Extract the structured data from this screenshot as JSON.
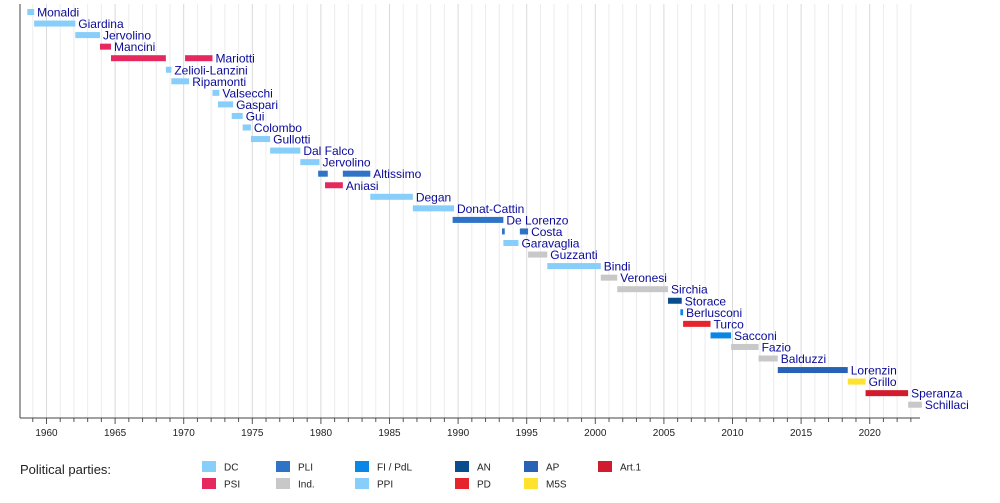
{
  "chart_data": {
    "type": "bar",
    "orientation": "horizontal-timeline",
    "xlim": [
      1958.0,
      2024.0
    ],
    "x_ticks": [
      1960,
      1965,
      1970,
      1975,
      1980,
      1985,
      1990,
      1995,
      2000,
      2005,
      2010,
      2015,
      2020
    ],
    "grid": true,
    "legend_title": "Political parties:",
    "parties": [
      {
        "key": "DC",
        "label": "DC",
        "color": "#87cefa"
      },
      {
        "key": "PSI",
        "label": "PSI",
        "color": "#e5295e"
      },
      {
        "key": "PLI",
        "label": "PLI",
        "color": "#2e73c6"
      },
      {
        "key": "Ind",
        "label": "Ind.",
        "color": "#c8c8c8"
      },
      {
        "key": "FI",
        "label": "FI / PdL",
        "color": "#0a87e6"
      },
      {
        "key": "PPI",
        "label": "PPI",
        "color": "#87cefa"
      },
      {
        "key": "AN",
        "label": "AN",
        "color": "#0a4d8f"
      },
      {
        "key": "PD",
        "label": "PD",
        "color": "#e5242c"
      },
      {
        "key": "AP",
        "label": "AP",
        "color": "#2762b4"
      },
      {
        "key": "M5S",
        "label": "M5S",
        "color": "#ffe22d"
      },
      {
        "key": "Art1",
        "label": "Art.1",
        "color": "#d01c2e"
      }
    ],
    "entries": [
      {
        "name": "Monaldi",
        "start": 1958.6,
        "end": 1959.1,
        "party": "DC"
      },
      {
        "name": "Giardina",
        "start": 1959.1,
        "end": 1962.1,
        "party": "DC"
      },
      {
        "name": "Jervolino",
        "start": 1962.1,
        "end": 1963.9,
        "party": "DC"
      },
      {
        "name": "Mancini",
        "start": 1963.9,
        "end": 1964.7,
        "party": "PSI"
      },
      {
        "name": "Mariotti",
        "start": 1964.7,
        "end": 1968.7,
        "party": "PSI",
        "start2": 1970.1,
        "end2": 1972.1
      },
      {
        "name": "Zelioli-Lanzini",
        "start": 1968.7,
        "end": 1969.1,
        "party": "DC"
      },
      {
        "name": "Ripamonti",
        "start": 1969.1,
        "end": 1970.4,
        "party": "DC"
      },
      {
        "name": "Valsecchi",
        "start": 1972.1,
        "end": 1972.6,
        "party": "DC"
      },
      {
        "name": "Gaspari",
        "start": 1972.5,
        "end": 1973.6,
        "party": "DC"
      },
      {
        "name": "Gui",
        "start": 1973.5,
        "end": 1974.3,
        "party": "DC"
      },
      {
        "name": "Colombo",
        "start": 1974.3,
        "end": 1974.9,
        "party": "DC"
      },
      {
        "name": "Gullotti",
        "start": 1974.9,
        "end": 1976.3,
        "party": "DC"
      },
      {
        "name": "Dal Falco",
        "start": 1976.3,
        "end": 1978.5,
        "party": "DC"
      },
      {
        "name": "Jervolino",
        "start": 1978.5,
        "end": 1979.9,
        "party": "DC"
      },
      {
        "name": "Altissimo",
        "start": 1979.8,
        "end": 1980.5,
        "party": "PLI",
        "start2": 1981.6,
        "end2": 1983.6
      },
      {
        "name": "Aniasi",
        "start": 1980.3,
        "end": 1981.6,
        "party": "PSI"
      },
      {
        "name": "Degan",
        "start": 1983.6,
        "end": 1986.7,
        "party": "DC"
      },
      {
        "name": "Donat-Cattin",
        "start": 1986.7,
        "end": 1989.7,
        "party": "DC"
      },
      {
        "name": "De Lorenzo",
        "start": 1989.6,
        "end": 1993.3,
        "party": "PLI"
      },
      {
        "name": "Costa",
        "start": 1993.2,
        "end": 1993.4,
        "party": "PLI",
        "start2": 1994.5,
        "end2": 1995.1
      },
      {
        "name": "Garavaglia",
        "start": 1993.3,
        "end": 1994.4,
        "party": "PPI"
      },
      {
        "name": "Guzzanti",
        "start": 1995.1,
        "end": 1996.5,
        "party": "Ind"
      },
      {
        "name": "Bindi",
        "start": 1996.5,
        "end": 2000.4,
        "party": "PPI"
      },
      {
        "name": "Veronesi",
        "start": 2000.4,
        "end": 2001.6,
        "party": "Ind"
      },
      {
        "name": "Sirchia",
        "start": 2001.6,
        "end": 2005.3,
        "party": "Ind"
      },
      {
        "name": "Storace",
        "start": 2005.3,
        "end": 2006.3,
        "party": "AN"
      },
      {
        "name": "Berlusconi",
        "start": 2006.2,
        "end": 2006.4,
        "party": "FI"
      },
      {
        "name": "Turco",
        "start": 2006.4,
        "end": 2008.4,
        "party": "PD"
      },
      {
        "name": "Sacconi",
        "start": 2008.4,
        "end": 2009.9,
        "party": "FI"
      },
      {
        "name": "Fazio",
        "start": 2009.9,
        "end": 2011.9,
        "party": "Ind"
      },
      {
        "name": "Balduzzi",
        "start": 2011.9,
        "end": 2013.3,
        "party": "Ind"
      },
      {
        "name": "Lorenzin",
        "start": 2013.3,
        "end": 2018.4,
        "party": "AP"
      },
      {
        "name": "Grillo",
        "start": 2018.4,
        "end": 2019.7,
        "party": "M5S"
      },
      {
        "name": "Speranza",
        "start": 2019.7,
        "end": 2022.8,
        "party": "Art1"
      },
      {
        "name": "Schillaci",
        "start": 2022.8,
        "end": 2023.8,
        "party": "Ind"
      }
    ]
  }
}
